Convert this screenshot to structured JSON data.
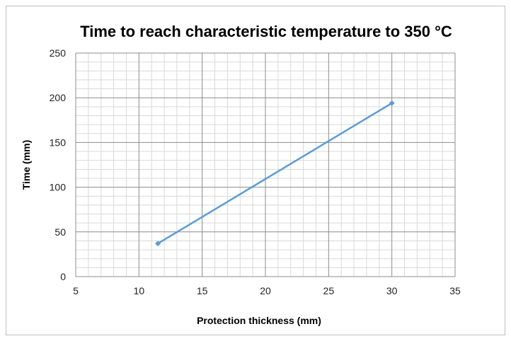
{
  "chart_data": {
    "type": "scatter",
    "title": "Time to reach characteristic temperature to 350 °C",
    "xlabel": "Protection thickness (mm)",
    "ylabel": "Time (mm)",
    "xlim": [
      5,
      35
    ],
    "ylim": [
      0,
      250
    ],
    "x_ticks": [
      5,
      10,
      15,
      20,
      25,
      30,
      35
    ],
    "y_ticks": [
      0,
      50,
      100,
      150,
      200,
      250
    ],
    "x_minor_step": 1,
    "y_minor_step": 10,
    "grid": true,
    "legend": "none",
    "series": [
      {
        "color": "#5b9bd5",
        "marker": "diamond",
        "connected": true,
        "x": [
          11.5,
          30
        ],
        "y": [
          37,
          194
        ]
      }
    ]
  }
}
